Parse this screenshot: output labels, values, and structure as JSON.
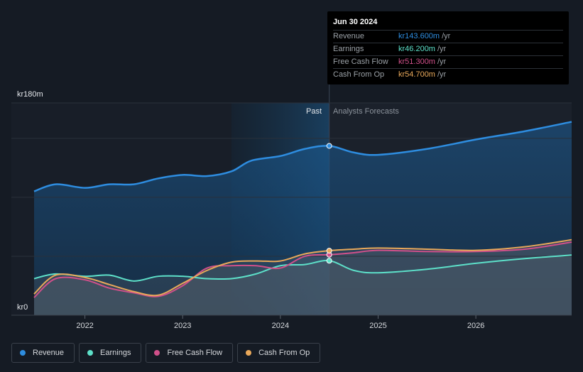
{
  "chart_data": {
    "type": "area",
    "ylabel_top": "kr180m",
    "ylabel_bottom": "kr0",
    "ylim": [
      0,
      180
    ],
    "xlim": [
      2021.48,
      2026.98
    ],
    "x_ticks": [
      {
        "value": 2022,
        "label": "2022"
      },
      {
        "value": 2023,
        "label": "2023"
      },
      {
        "value": 2024,
        "label": "2024"
      },
      {
        "value": 2025,
        "label": "2025"
      },
      {
        "value": 2026,
        "label": "2026"
      }
    ],
    "past_label": "Past",
    "forecast_label": "Analysts Forecasts",
    "forecast_start": 2024.5,
    "highlight_start": 2023.5,
    "series": [
      {
        "name": "Revenue",
        "color": "#2e8de0",
        "points": [
          [
            2021.48,
            105
          ],
          [
            2021.7,
            111
          ],
          [
            2022.0,
            108
          ],
          [
            2022.25,
            111
          ],
          [
            2022.5,
            111
          ],
          [
            2022.75,
            116
          ],
          [
            2023.0,
            119
          ],
          [
            2023.25,
            118
          ],
          [
            2023.5,
            122
          ],
          [
            2023.7,
            131
          ],
          [
            2024.0,
            135
          ],
          [
            2024.25,
            141
          ],
          [
            2024.5,
            143.6
          ],
          [
            2024.75,
            138
          ],
          [
            2025.0,
            136
          ],
          [
            2025.5,
            141
          ],
          [
            2026.0,
            149
          ],
          [
            2026.5,
            156
          ],
          [
            2026.98,
            164
          ]
        ]
      },
      {
        "name": "Earnings",
        "color": "#5de0c9",
        "points": [
          [
            2021.48,
            31
          ],
          [
            2021.7,
            35
          ],
          [
            2022.0,
            33
          ],
          [
            2022.25,
            34
          ],
          [
            2022.5,
            29
          ],
          [
            2022.75,
            33
          ],
          [
            2023.0,
            33
          ],
          [
            2023.25,
            31
          ],
          [
            2023.5,
            31
          ],
          [
            2023.75,
            35
          ],
          [
            2024.0,
            42
          ],
          [
            2024.25,
            43
          ],
          [
            2024.5,
            46.2
          ],
          [
            2024.75,
            38
          ],
          [
            2025.0,
            36
          ],
          [
            2025.5,
            39
          ],
          [
            2026.0,
            44
          ],
          [
            2026.5,
            48
          ],
          [
            2026.98,
            51
          ]
        ]
      },
      {
        "name": "Free Cash Flow",
        "color": "#d0508a",
        "points": [
          [
            2021.48,
            15
          ],
          [
            2021.7,
            31
          ],
          [
            2022.0,
            30
          ],
          [
            2022.25,
            23
          ],
          [
            2022.5,
            19
          ],
          [
            2022.75,
            16
          ],
          [
            2023.0,
            25
          ],
          [
            2023.25,
            40
          ],
          [
            2023.5,
            42
          ],
          [
            2023.75,
            42
          ],
          [
            2024.0,
            40
          ],
          [
            2024.25,
            50
          ],
          [
            2024.5,
            51.3
          ],
          [
            2024.75,
            53
          ],
          [
            2025.0,
            55
          ],
          [
            2025.5,
            54
          ],
          [
            2026.0,
            54
          ],
          [
            2026.5,
            56
          ],
          [
            2026.98,
            62
          ]
        ]
      },
      {
        "name": "Cash From Op",
        "color": "#e8a85a",
        "points": [
          [
            2021.48,
            18
          ],
          [
            2021.7,
            34
          ],
          [
            2022.0,
            32
          ],
          [
            2022.25,
            26
          ],
          [
            2022.5,
            20
          ],
          [
            2022.75,
            17
          ],
          [
            2023.0,
            27
          ],
          [
            2023.25,
            38
          ],
          [
            2023.5,
            45
          ],
          [
            2023.75,
            46
          ],
          [
            2024.0,
            46
          ],
          [
            2024.25,
            52
          ],
          [
            2024.5,
            54.7
          ],
          [
            2024.75,
            56
          ],
          [
            2025.0,
            57
          ],
          [
            2025.5,
            56
          ],
          [
            2026.0,
            55
          ],
          [
            2026.5,
            58
          ],
          [
            2026.98,
            64
          ]
        ]
      }
    ]
  },
  "tooltip": {
    "date": "Jun 30 2024",
    "rows": [
      {
        "label": "Revenue",
        "value": "kr143.600m",
        "unit": "/yr",
        "color": "#2e8de0"
      },
      {
        "label": "Earnings",
        "value": "kr46.200m",
        "unit": "/yr",
        "color": "#5de0c9"
      },
      {
        "label": "Free Cash Flow",
        "value": "kr51.300m",
        "unit": "/yr",
        "color": "#d0508a"
      },
      {
        "label": "Cash From Op",
        "value": "kr54.700m",
        "unit": "/yr",
        "color": "#e8a85a"
      }
    ]
  },
  "legend": [
    {
      "label": "Revenue",
      "color": "#2e8de0"
    },
    {
      "label": "Earnings",
      "color": "#5de0c9"
    },
    {
      "label": "Free Cash Flow",
      "color": "#d0508a"
    },
    {
      "label": "Cash From Op",
      "color": "#e8a85a"
    }
  ]
}
